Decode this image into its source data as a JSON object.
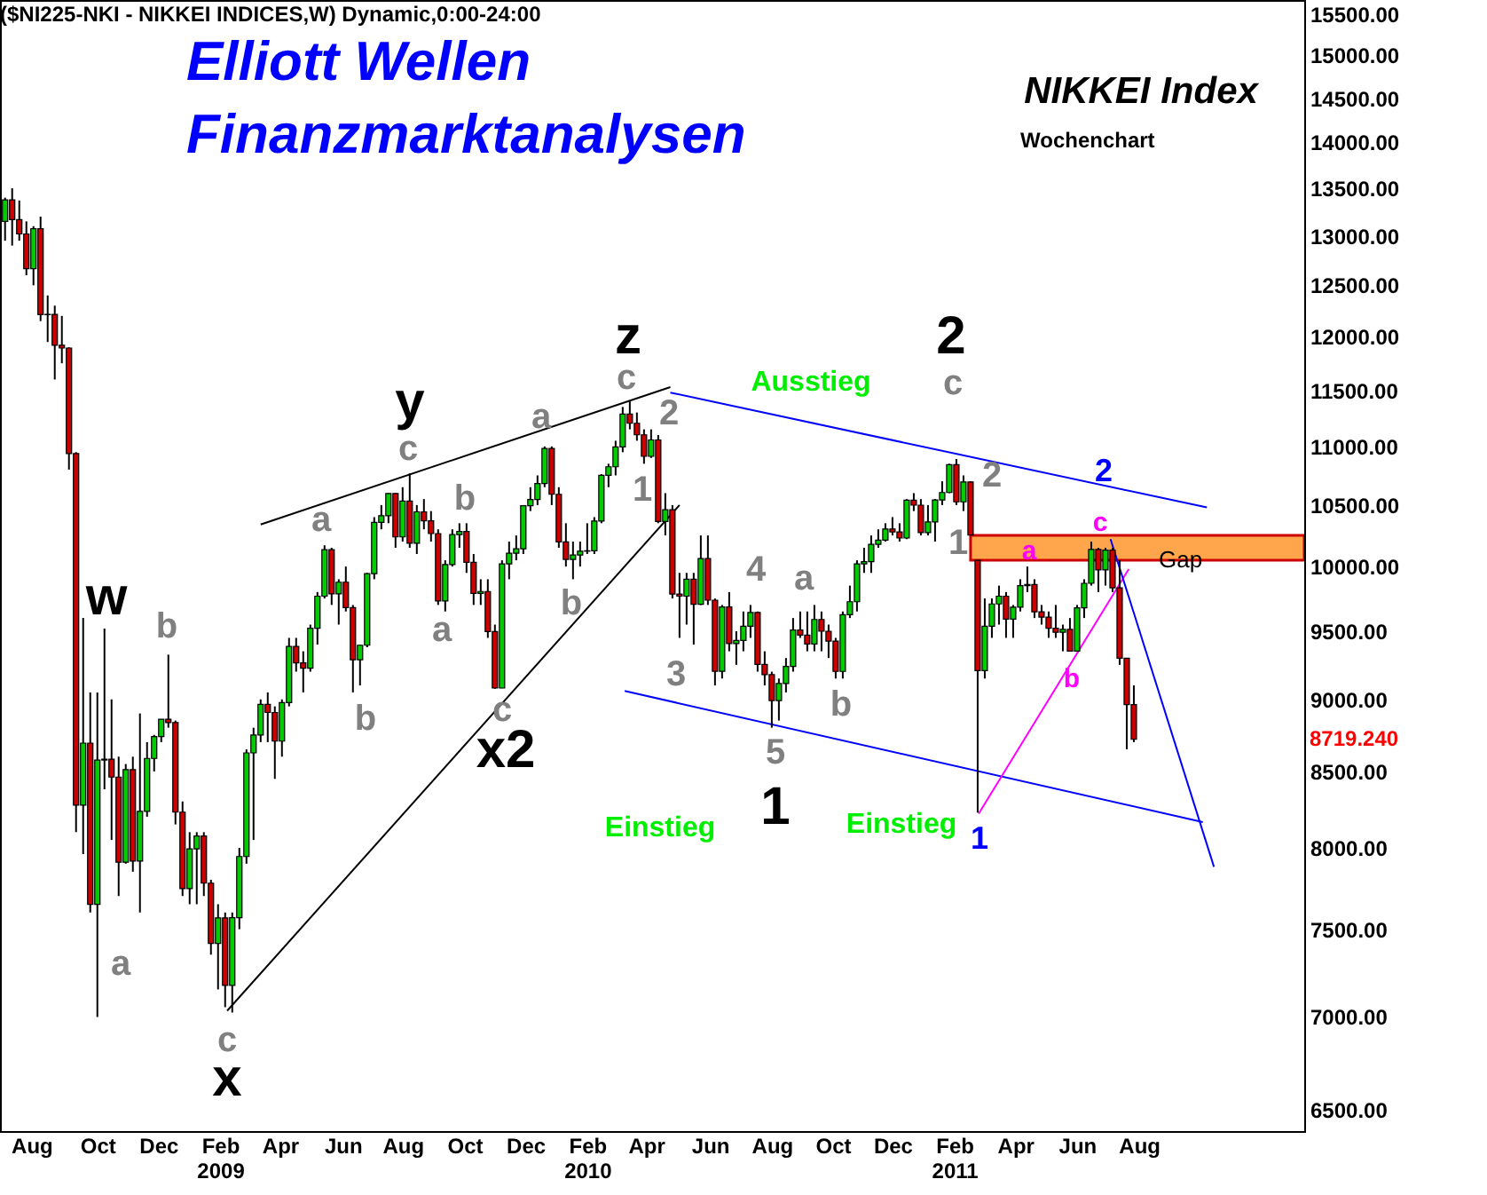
{
  "chart_data": {
    "type": "candlestick",
    "title": "NIKKEI Index",
    "subtitle": "Wochenchart",
    "log": true,
    "xlim": [
      "2008-07-23",
      "2012-01-30"
    ],
    "ylim": [
      6390,
      15675
    ],
    "xticks": [
      {
        "value": "2008-08-23",
        "label": "Aug"
      },
      {
        "value": "2008-10-27",
        "label": "Oct"
      },
      {
        "value": "2008-12-26",
        "label": "Dec"
      },
      {
        "value": "2009-02-25",
        "label": "Feb\n2009"
      },
      {
        "value": "2009-04-25",
        "label": "Apr"
      },
      {
        "value": "2009-06-26",
        "label": "Jun"
      },
      {
        "value": "2009-08-24",
        "label": "Aug"
      },
      {
        "value": "2009-10-24",
        "label": "Oct"
      },
      {
        "value": "2009-12-23",
        "label": "Dec"
      },
      {
        "value": "2010-02-22",
        "label": "Feb\n2010"
      },
      {
        "value": "2010-04-21",
        "label": "Apr"
      },
      {
        "value": "2010-06-23",
        "label": "Jun"
      },
      {
        "value": "2010-08-23",
        "label": "Aug"
      },
      {
        "value": "2010-10-22",
        "label": "Oct"
      },
      {
        "value": "2010-12-20",
        "label": "Dec"
      },
      {
        "value": "2011-02-19",
        "label": "Feb\n2011"
      },
      {
        "value": "2011-04-20",
        "label": "Apr"
      },
      {
        "value": "2011-06-20",
        "label": "Jun"
      },
      {
        "value": "2011-08-20",
        "label": "Aug"
      }
    ],
    "yticks": [
      {
        "value": 6500,
        "label": "6500.00"
      },
      {
        "value": 7000,
        "label": "7000.00"
      },
      {
        "value": 7500,
        "label": "7500.00"
      },
      {
        "value": 8000,
        "label": "8000.00"
      },
      {
        "value": 8500,
        "label": "8500.00"
      },
      {
        "value": 9000,
        "label": "9000.00"
      },
      {
        "value": 9500,
        "label": "9500.00"
      },
      {
        "value": 10000,
        "label": "10000.00"
      },
      {
        "value": 10500,
        "label": "10500.00"
      },
      {
        "value": 11000,
        "label": "11000.00"
      },
      {
        "value": 11500,
        "label": "11500.00"
      },
      {
        "value": 12000,
        "label": "12000.00"
      },
      {
        "value": 12500,
        "label": "12500.00"
      },
      {
        "value": 13000,
        "label": "13000.00"
      },
      {
        "value": 13500,
        "label": "13500.00"
      },
      {
        "value": 14000,
        "label": "14000.00"
      },
      {
        "value": 14500,
        "label": "14500.00"
      },
      {
        "value": 15000,
        "label": "15000.00"
      },
      {
        "value": 15500,
        "label": "15500.00"
      }
    ],
    "x": [
      "2008-07-28",
      "2008-08-04",
      "2008-08-11",
      "2008-08-18",
      "2008-08-25",
      "2008-09-01",
      "2008-09-08",
      "2008-09-15",
      "2008-09-22",
      "2008-09-29",
      "2008-10-06",
      "2008-10-13",
      "2008-10-20",
      "2008-10-27",
      "2008-11-03",
      "2008-11-10",
      "2008-11-17",
      "2008-11-24",
      "2008-12-01",
      "2008-12-08",
      "2008-12-15",
      "2008-12-22",
      "2008-12-29",
      "2009-01-05",
      "2009-01-12",
      "2009-01-19",
      "2009-01-26",
      "2009-02-02",
      "2009-02-09",
      "2009-02-16",
      "2009-02-23",
      "2009-03-02",
      "2009-03-09",
      "2009-03-16",
      "2009-03-23",
      "2009-03-30",
      "2009-04-06",
      "2009-04-13",
      "2009-04-20",
      "2009-04-27",
      "2009-05-04",
      "2009-05-11",
      "2009-05-18",
      "2009-05-25",
      "2009-06-01",
      "2009-06-08",
      "2009-06-15",
      "2009-06-22",
      "2009-06-29",
      "2009-07-06",
      "2009-07-13",
      "2009-07-20",
      "2009-07-27",
      "2009-08-03",
      "2009-08-10",
      "2009-08-17",
      "2009-08-24",
      "2009-08-31",
      "2009-09-07",
      "2009-09-14",
      "2009-09-21",
      "2009-09-28",
      "2009-10-05",
      "2009-10-12",
      "2009-10-19",
      "2009-10-26",
      "2009-11-02",
      "2009-11-09",
      "2009-11-16",
      "2009-11-23",
      "2009-11-30",
      "2009-12-07",
      "2009-12-14",
      "2009-12-21",
      "2009-12-28",
      "2010-01-04",
      "2010-01-11",
      "2010-01-18",
      "2010-01-25",
      "2010-02-01",
      "2010-02-08",
      "2010-02-15",
      "2010-02-22",
      "2010-03-01",
      "2010-03-08",
      "2010-03-15",
      "2010-03-22",
      "2010-03-29",
      "2010-04-05",
      "2010-04-12",
      "2010-04-19",
      "2010-04-26",
      "2010-05-03",
      "2010-05-10",
      "2010-05-17",
      "2010-05-24",
      "2010-05-31",
      "2010-06-07",
      "2010-06-14",
      "2010-06-21",
      "2010-06-28",
      "2010-07-05",
      "2010-07-12",
      "2010-07-19",
      "2010-07-26",
      "2010-08-02",
      "2010-08-09",
      "2010-08-16",
      "2010-08-23",
      "2010-08-30",
      "2010-09-06",
      "2010-09-13",
      "2010-09-20",
      "2010-09-27",
      "2010-10-04",
      "2010-10-11",
      "2010-10-18",
      "2010-10-25",
      "2010-11-01",
      "2010-11-08",
      "2010-11-15",
      "2010-11-22",
      "2010-11-29",
      "2010-12-06",
      "2010-12-13",
      "2010-12-20",
      "2010-12-27",
      "2011-01-03",
      "2011-01-10",
      "2011-01-17",
      "2011-01-24",
      "2011-01-31",
      "2011-02-07",
      "2011-02-14",
      "2011-02-21",
      "2011-02-28",
      "2011-03-07",
      "2011-03-14",
      "2011-03-21",
      "2011-03-28",
      "2011-04-04",
      "2011-04-11",
      "2011-04-18",
      "2011-04-25",
      "2011-05-02",
      "2011-05-09",
      "2011-05-16",
      "2011-05-23",
      "2011-05-30",
      "2011-06-06",
      "2011-06-13",
      "2011-06-20",
      "2011-06-27",
      "2011-07-04",
      "2011-07-11",
      "2011-07-18",
      "2011-07-25",
      "2011-08-01",
      "2011-08-08",
      "2011-08-15"
    ],
    "ohlc": [
      [
        13150,
        13400,
        12950,
        13376
      ],
      [
        13376,
        13500,
        12900,
        13169
      ],
      [
        13169,
        13370,
        12950,
        13020
      ],
      [
        13020,
        13150,
        12600,
        12666
      ],
      [
        12666,
        13100,
        12500,
        13073
      ],
      [
        13073,
        13200,
        12150,
        12212
      ],
      [
        12212,
        12400,
        11950,
        12215
      ],
      [
        12215,
        12300,
        11600,
        11920
      ],
      [
        11920,
        12200,
        11750,
        11893
      ],
      [
        11893,
        11900,
        10800,
        10938
      ],
      [
        10938,
        10950,
        8100,
        8276
      ],
      [
        8276,
        9600,
        7960,
        8693
      ],
      [
        8693,
        9050,
        7600,
        7649
      ],
      [
        7649,
        9050,
        6995,
        8577
      ],
      [
        8577,
        9520,
        8380,
        8583
      ],
      [
        8583,
        9000,
        8050,
        8462
      ],
      [
        8462,
        8600,
        7700,
        7910
      ],
      [
        7910,
        8550,
        7900,
        8512
      ],
      [
        8512,
        8600,
        7850,
        7917
      ],
      [
        7917,
        8900,
        7600,
        8235
      ],
      [
        8235,
        8700,
        8200,
        8588
      ],
      [
        8588,
        8750,
        8500,
        8739
      ],
      [
        8739,
        8860,
        8700,
        8859
      ],
      [
        8859,
        9325,
        8800,
        8836
      ],
      [
        8836,
        8850,
        8150,
        8230
      ],
      [
        8230,
        8300,
        7700,
        7745
      ],
      [
        7745,
        8100,
        7650,
        7994
      ],
      [
        7994,
        8100,
        7650,
        8076
      ],
      [
        8076,
        8100,
        7700,
        7779
      ],
      [
        7779,
        7800,
        7350,
        7416
      ],
      [
        7416,
        7650,
        7150,
        7568
      ],
      [
        7568,
        7600,
        7050,
        7173
      ],
      [
        7173,
        7600,
        7020,
        7569
      ],
      [
        7569,
        8000,
        7500,
        7945
      ],
      [
        7945,
        8650,
        7900,
        8626
      ],
      [
        8626,
        8800,
        8050,
        8749
      ],
      [
        8749,
        9000,
        8700,
        8964
      ],
      [
        8964,
        9050,
        8700,
        8907
      ],
      [
        8907,
        8950,
        8450,
        8707
      ],
      [
        8707,
        9000,
        8600,
        8977
      ],
      [
        8977,
        9450,
        8950,
        9386
      ],
      [
        9386,
        9450,
        9200,
        9265
      ],
      [
        9265,
        9350,
        9050,
        9225
      ],
      [
        9225,
        9550,
        9200,
        9522
      ],
      [
        9522,
        9800,
        9400,
        9768
      ],
      [
        9768,
        10170,
        9750,
        10135
      ],
      [
        10135,
        10150,
        9700,
        9786
      ],
      [
        9786,
        9900,
        9550,
        9877
      ],
      [
        9877,
        10000,
        9650,
        9680
      ],
      [
        9680,
        9700,
        9050,
        9287
      ],
      [
        9287,
        9400,
        9100,
        9395
      ],
      [
        9395,
        9950,
        9380,
        9944
      ],
      [
        9944,
        10400,
        9900,
        10357
      ],
      [
        10357,
        10500,
        10300,
        10412
      ],
      [
        10412,
        10600,
        10350,
        10597
      ],
      [
        10597,
        10600,
        10150,
        10238
      ],
      [
        10238,
        10650,
        10200,
        10534
      ],
      [
        10534,
        10767,
        10150,
        10187
      ],
      [
        10187,
        10500,
        10100,
        10444
      ],
      [
        10444,
        10550,
        10300,
        10370
      ],
      [
        10370,
        10450,
        10200,
        10265
      ],
      [
        10265,
        10300,
        9700,
        9731
      ],
      [
        9731,
        10050,
        9650,
        10016
      ],
      [
        10016,
        10300,
        10000,
        10257
      ],
      [
        10257,
        10350,
        10150,
        10282
      ],
      [
        10282,
        10350,
        9950,
        10034
      ],
      [
        10034,
        10100,
        9700,
        9789
      ],
      [
        9789,
        9900,
        9700,
        9804
      ],
      [
        9804,
        9900,
        9450,
        9497
      ],
      [
        9497,
        9550,
        9076,
        9081
      ],
      [
        9081,
        10050,
        9080,
        10022
      ],
      [
        10022,
        10200,
        9900,
        10107
      ],
      [
        10107,
        10250,
        10050,
        10142
      ],
      [
        10142,
        10500,
        10100,
        10494
      ],
      [
        10494,
        10650,
        10450,
        10546
      ],
      [
        10546,
        10750,
        10500,
        10681
      ],
      [
        10681,
        11000,
        10650,
        10982
      ],
      [
        10982,
        11000,
        10500,
        10590
      ],
      [
        10590,
        10650,
        10150,
        10198
      ],
      [
        10198,
        10350,
        10000,
        10057
      ],
      [
        10057,
        10200,
        9900,
        10092
      ],
      [
        10092,
        10200,
        10000,
        10123
      ],
      [
        10123,
        10350,
        10100,
        10126
      ],
      [
        10126,
        10400,
        10100,
        10368
      ],
      [
        10368,
        10760,
        10350,
        10751
      ],
      [
        10751,
        10850,
        10650,
        10824
      ],
      [
        10824,
        11050,
        10750,
        10996
      ],
      [
        10996,
        11350,
        10950,
        11286
      ],
      [
        11286,
        11400,
        11150,
        11204
      ],
      [
        11204,
        11300,
        11050,
        11102
      ],
      [
        11102,
        11150,
        10850,
        10914
      ],
      [
        10914,
        11150,
        10900,
        11057
      ],
      [
        11057,
        11100,
        10350,
        10364
      ],
      [
        10364,
        10600,
        10250,
        10462
      ],
      [
        10462,
        10500,
        9750,
        9784
      ],
      [
        9784,
        9950,
        9450,
        9768
      ],
      [
        9768,
        9950,
        9550,
        9901
      ],
      [
        9901,
        9950,
        9400,
        9705
      ],
      [
        9705,
        10250,
        9700,
        10064
      ],
      [
        10064,
        10250,
        9700,
        9737
      ],
      [
        9737,
        9750,
        9100,
        9203
      ],
      [
        9203,
        9700,
        9150,
        9685
      ],
      [
        9685,
        9800,
        9350,
        9408
      ],
      [
        9408,
        9500,
        9250,
        9431
      ],
      [
        9431,
        9650,
        9350,
        9537
      ],
      [
        9537,
        9700,
        9450,
        9642
      ],
      [
        9642,
        9650,
        9200,
        9253
      ],
      [
        9253,
        9350,
        9100,
        9179
      ],
      [
        9179,
        9200,
        8800,
        8991
      ],
      [
        8991,
        9150,
        8850,
        9114
      ],
      [
        9114,
        9300,
        9050,
        9239
      ],
      [
        9239,
        9600,
        9200,
        9509
      ],
      [
        9509,
        9650,
        9450,
        9471
      ],
      [
        9471,
        9650,
        9350,
        9404
      ],
      [
        9404,
        9700,
        9350,
        9589
      ],
      [
        9589,
        9650,
        9350,
        9500
      ],
      [
        9500,
        9550,
        9300,
        9426
      ],
      [
        9426,
        9450,
        9150,
        9202
      ],
      [
        9202,
        9650,
        9150,
        9625
      ],
      [
        9625,
        9850,
        9600,
        9725
      ],
      [
        9725,
        10050,
        9650,
        10022
      ],
      [
        10022,
        10150,
        9950,
        10039
      ],
      [
        10039,
        10250,
        9950,
        10178
      ],
      [
        10178,
        10300,
        10150,
        10212
      ],
      [
        10212,
        10350,
        10200,
        10303
      ],
      [
        10303,
        10400,
        10250,
        10279
      ],
      [
        10279,
        10350,
        10200,
        10229
      ],
      [
        10229,
        10550,
        10220,
        10541
      ],
      [
        10541,
        10600,
        10450,
        10499
      ],
      [
        10499,
        10550,
        10250,
        10274
      ],
      [
        10274,
        10500,
        10250,
        10360
      ],
      [
        10360,
        10550,
        10200,
        10543
      ],
      [
        10543,
        10700,
        10500,
        10605
      ],
      [
        10605,
        10850,
        10600,
        10842
      ],
      [
        10842,
        10891,
        10500,
        10527
      ],
      [
        10527,
        10750,
        10450,
        10694
      ],
      [
        10694,
        10700,
        10250,
        10254
      ],
      [
        10050,
        10050,
        8227,
        9207
      ],
      [
        9207,
        9750,
        9150,
        9537
      ],
      [
        9537,
        9750,
        9450,
        9708
      ],
      [
        9708,
        9850,
        9550,
        9768
      ],
      [
        9768,
        9800,
        9450,
        9592
      ],
      [
        9592,
        9700,
        9450,
        9683
      ],
      [
        9683,
        9900,
        9650,
        9850
      ],
      [
        9850,
        10000,
        9800,
        9859
      ],
      [
        9859,
        9900,
        9600,
        9648
      ],
      [
        9648,
        9700,
        9550,
        9607
      ],
      [
        9607,
        9650,
        9450,
        9522
      ],
      [
        9522,
        9700,
        9450,
        9492
      ],
      [
        9492,
        9550,
        9350,
        9514
      ],
      [
        9514,
        9600,
        9350,
        9351
      ],
      [
        9351,
        9700,
        9350,
        9678
      ],
      [
        9678,
        9900,
        9600,
        9868
      ],
      [
        9868,
        10200,
        9850,
        10137
      ],
      [
        10137,
        10150,
        9800,
        9974
      ],
      [
        9974,
        10150,
        9850,
        10132
      ],
      [
        10132,
        10150,
        9800,
        9833
      ],
      [
        9833,
        10050,
        9250,
        9299
      ],
      [
        9299,
        9300,
        8650,
        8963
      ],
      [
        8963,
        9100,
        8700,
        8719.24
      ]
    ],
    "series": [
      {
        "type": "line",
        "color": "#000000",
        "x": [
          "2009-04-06",
          "2010-05-15"
        ],
        "values": [
          10340,
          11530
        ]
      },
      {
        "type": "line",
        "color": "#000000",
        "x": [
          "2009-03-04",
          "2010-05-24"
        ],
        "values": [
          7030,
          10500
        ]
      },
      {
        "type": "line",
        "color": "#0000ff",
        "x": [
          "2010-05-15",
          "2011-10-26"
        ],
        "values": [
          11480,
          10480
        ]
      },
      {
        "type": "line",
        "color": "#0000ff",
        "x": [
          "2010-03-31",
          "2011-10-22"
        ],
        "values": [
          9060,
          8165
        ]
      },
      {
        "type": "line",
        "color": "#ff00ff",
        "x": [
          "2011-03-15",
          "2011-08-10"
        ],
        "values": [
          8220,
          9980
        ]
      },
      {
        "type": "line",
        "color": "#0000ff",
        "x": [
          "2011-07-23",
          "2011-11-02"
        ],
        "values": [
          10220,
          7880
        ]
      }
    ],
    "bands": [
      {
        "axis": "y",
        "from": 10050,
        "to": 10250,
        "label": "Gap",
        "color": "#ffa64d"
      }
    ],
    "annotations": [
      "($NI225-NKI - NIKKEI INDICES,W) Dynamic,0:00-24:00",
      "Elliott Wellen",
      "Finanzmarktanalysen",
      "w",
      "b",
      "a",
      "c",
      "x",
      "a",
      "b",
      "c",
      "y",
      "b",
      "a",
      "c",
      "x2",
      "a",
      "b",
      "z",
      "c",
      "2",
      "1",
      "3",
      "4",
      "a",
      "b",
      "5",
      "1",
      "Ausstieg",
      "Einstieg",
      "Einstieg",
      "2",
      "c",
      "2",
      "1",
      "1",
      "2",
      "c",
      "a",
      "b",
      "8719.240"
    ]
  }
}
